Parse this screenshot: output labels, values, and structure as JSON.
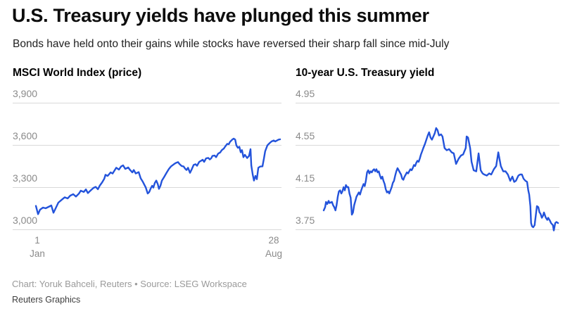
{
  "page": {
    "title": "U.S. Treasury yields have plunged this summer",
    "subtitle": "Bonds have held onto their gains while stocks have reversed their sharp fall since mid-July",
    "footer_credit": "Chart: Yoruk Bahceli, Reuters • Source: LSEG Workspace",
    "footer_brand": "Reuters Graphics"
  },
  "chart_data": [
    {
      "type": "line",
      "title": "MSCI World Index (price)",
      "x_range": [
        "1 Jan",
        "28 Aug"
      ],
      "x_unit": "fraction of x-axis from 1 Jan (0) to 28 Aug (1)",
      "ylim": [
        3000,
        3900
      ],
      "yticks": [
        3000,
        3300,
        3600,
        3900
      ],
      "ytick_labels": [
        "3,000",
        "3,300",
        "3,600",
        "3,900"
      ],
      "xtick_labels": [
        [
          "1",
          "Jan"
        ],
        [
          "28",
          "Aug"
        ]
      ],
      "grid": true,
      "legend": "none",
      "line_color": "#2353db",
      "points": [
        [
          0,
          3167
        ],
        [
          0.009,
          3108
        ],
        [
          0.017,
          3140
        ],
        [
          0.029,
          3155
        ],
        [
          0.04,
          3150
        ],
        [
          0.052,
          3160
        ],
        [
          0.063,
          3170
        ],
        [
          0.072,
          3118
        ],
        [
          0.081,
          3150
        ],
        [
          0.092,
          3190
        ],
        [
          0.107,
          3212
        ],
        [
          0.118,
          3228
        ],
        [
          0.13,
          3220
        ],
        [
          0.141,
          3240
        ],
        [
          0.153,
          3250
        ],
        [
          0.164,
          3233
        ],
        [
          0.176,
          3254
        ],
        [
          0.184,
          3275
        ],
        [
          0.196,
          3266
        ],
        [
          0.205,
          3284
        ],
        [
          0.213,
          3258
        ],
        [
          0.225,
          3278
        ],
        [
          0.236,
          3295
        ],
        [
          0.245,
          3302
        ],
        [
          0.254,
          3285
        ],
        [
          0.262,
          3312
        ],
        [
          0.271,
          3333
        ],
        [
          0.28,
          3360
        ],
        [
          0.285,
          3388
        ],
        [
          0.294,
          3380
        ],
        [
          0.306,
          3405
        ],
        [
          0.314,
          3397
        ],
        [
          0.329,
          3438
        ],
        [
          0.34,
          3425
        ],
        [
          0.349,
          3447
        ],
        [
          0.357,
          3455
        ],
        [
          0.366,
          3430
        ],
        [
          0.378,
          3440
        ],
        [
          0.386,
          3422
        ],
        [
          0.395,
          3405
        ],
        [
          0.401,
          3422
        ],
        [
          0.409,
          3397
        ],
        [
          0.421,
          3407
        ],
        [
          0.429,
          3363
        ],
        [
          0.438,
          3338
        ],
        [
          0.45,
          3297
        ],
        [
          0.458,
          3255
        ],
        [
          0.464,
          3265
        ],
        [
          0.47,
          3290
        ],
        [
          0.476,
          3310
        ],
        [
          0.481,
          3297
        ],
        [
          0.487,
          3330
        ],
        [
          0.493,
          3347
        ],
        [
          0.499,
          3322
        ],
        [
          0.504,
          3288
        ],
        [
          0.51,
          3310
        ],
        [
          0.516,
          3347
        ],
        [
          0.525,
          3372
        ],
        [
          0.536,
          3405
        ],
        [
          0.545,
          3430
        ],
        [
          0.553,
          3447
        ],
        [
          0.565,
          3463
        ],
        [
          0.573,
          3472
        ],
        [
          0.582,
          3478
        ],
        [
          0.588,
          3465
        ],
        [
          0.597,
          3450
        ],
        [
          0.605,
          3447
        ],
        [
          0.611,
          3432
        ],
        [
          0.617,
          3422
        ],
        [
          0.623,
          3438
        ],
        [
          0.631,
          3402
        ],
        [
          0.637,
          3422
        ],
        [
          0.646,
          3458
        ],
        [
          0.654,
          3463
        ],
        [
          0.66,
          3452
        ],
        [
          0.669,
          3480
        ],
        [
          0.677,
          3488
        ],
        [
          0.683,
          3495
        ],
        [
          0.689,
          3480
        ],
        [
          0.697,
          3505
        ],
        [
          0.706,
          3508
        ],
        [
          0.712,
          3497
        ],
        [
          0.718,
          3505
        ],
        [
          0.723,
          3522
        ],
        [
          0.732,
          3525
        ],
        [
          0.738,
          3513
        ],
        [
          0.746,
          3538
        ],
        [
          0.755,
          3547
        ],
        [
          0.761,
          3563
        ],
        [
          0.77,
          3575
        ],
        [
          0.775,
          3588
        ],
        [
          0.784,
          3608
        ],
        [
          0.79,
          3605
        ],
        [
          0.795,
          3622
        ],
        [
          0.804,
          3638
        ],
        [
          0.81,
          3645
        ],
        [
          0.816,
          3638
        ],
        [
          0.821,
          3597
        ],
        [
          0.827,
          3580
        ],
        [
          0.833,
          3587
        ],
        [
          0.839,
          3548
        ],
        [
          0.844,
          3563
        ],
        [
          0.85,
          3513
        ],
        [
          0.856,
          3530
        ],
        [
          0.865,
          3507
        ],
        [
          0.873,
          3522
        ],
        [
          0.879,
          3570
        ],
        [
          0.882,
          3455
        ],
        [
          0.888,
          3390
        ],
        [
          0.893,
          3347
        ],
        [
          0.899,
          3380
        ],
        [
          0.905,
          3357
        ],
        [
          0.911,
          3438
        ],
        [
          0.919,
          3447
        ],
        [
          0.928,
          3448
        ],
        [
          0.934,
          3505
        ],
        [
          0.939,
          3555
        ],
        [
          0.948,
          3597
        ],
        [
          0.957,
          3613
        ],
        [
          0.965,
          3625
        ],
        [
          0.974,
          3632
        ],
        [
          0.98,
          3625
        ],
        [
          0.988,
          3632
        ],
        [
          0.994,
          3638
        ],
        [
          1,
          3640
        ]
      ]
    },
    {
      "type": "line",
      "title": "10-year U.S. Treasury yield",
      "x_range": [
        "1 Jan",
        "28 Aug"
      ],
      "x_unit": "fraction of x-axis from 1 Jan (0) to 28 Aug (1)",
      "ylim": [
        3.75,
        4.95
      ],
      "yticks": [
        3.75,
        4.15,
        4.55,
        4.95
      ],
      "ytick_labels": [
        "3.75",
        "4.15",
        "4.55",
        "4.95"
      ],
      "xtick_labels": [],
      "grid": true,
      "legend": "none",
      "line_color": "#2353db",
      "points": [
        [
          0,
          3.93
        ],
        [
          0.006,
          3.96
        ],
        [
          0.01,
          4.01
        ],
        [
          0.015,
          3.99
        ],
        [
          0.021,
          4.02
        ],
        [
          0.025,
          4.0
        ],
        [
          0.035,
          4.01
        ],
        [
          0.04,
          3.98
        ],
        [
          0.045,
          3.96
        ],
        [
          0.05,
          3.93
        ],
        [
          0.055,
          3.98
        ],
        [
          0.06,
          4.06
        ],
        [
          0.065,
          4.11
        ],
        [
          0.07,
          4.12
        ],
        [
          0.075,
          4.09
        ],
        [
          0.08,
          4.11
        ],
        [
          0.085,
          4.15
        ],
        [
          0.09,
          4.12
        ],
        [
          0.095,
          4.17
        ],
        [
          0.1,
          4.15
        ],
        [
          0.105,
          4.15
        ],
        [
          0.11,
          4.09
        ],
        [
          0.115,
          4.05
        ],
        [
          0.12,
          3.89
        ],
        [
          0.125,
          3.91
        ],
        [
          0.13,
          3.98
        ],
        [
          0.135,
          4.02
        ],
        [
          0.14,
          4.06
        ],
        [
          0.145,
          4.08
        ],
        [
          0.15,
          4.1
        ],
        [
          0.155,
          4.08
        ],
        [
          0.16,
          4.12
        ],
        [
          0.165,
          4.15
        ],
        [
          0.17,
          4.18
        ],
        [
          0.175,
          4.16
        ],
        [
          0.18,
          4.21
        ],
        [
          0.185,
          4.29
        ],
        [
          0.19,
          4.31
        ],
        [
          0.195,
          4.28
        ],
        [
          0.2,
          4.3
        ],
        [
          0.205,
          4.29
        ],
        [
          0.21,
          4.31
        ],
        [
          0.215,
          4.32
        ],
        [
          0.22,
          4.3
        ],
        [
          0.225,
          4.32
        ],
        [
          0.23,
          4.29
        ],
        [
          0.235,
          4.3
        ],
        [
          0.24,
          4.26
        ],
        [
          0.245,
          4.23
        ],
        [
          0.25,
          4.25
        ],
        [
          0.255,
          4.21
        ],
        [
          0.26,
          4.18
        ],
        [
          0.265,
          4.13
        ],
        [
          0.27,
          4.1
        ],
        [
          0.275,
          4.11
        ],
        [
          0.28,
          4.09
        ],
        [
          0.285,
          4.12
        ],
        [
          0.29,
          4.15
        ],
        [
          0.295,
          4.19
        ],
        [
          0.3,
          4.21
        ],
        [
          0.305,
          4.26
        ],
        [
          0.31,
          4.3
        ],
        [
          0.315,
          4.33
        ],
        [
          0.32,
          4.31
        ],
        [
          0.325,
          4.29
        ],
        [
          0.33,
          4.27
        ],
        [
          0.335,
          4.23
        ],
        [
          0.34,
          4.22
        ],
        [
          0.345,
          4.25
        ],
        [
          0.35,
          4.27
        ],
        [
          0.355,
          4.29
        ],
        [
          0.36,
          4.28
        ],
        [
          0.365,
          4.3
        ],
        [
          0.37,
          4.32
        ],
        [
          0.375,
          4.31
        ],
        [
          0.38,
          4.33
        ],
        [
          0.385,
          4.36
        ],
        [
          0.39,
          4.35
        ],
        [
          0.395,
          4.38
        ],
        [
          0.4,
          4.4
        ],
        [
          0.405,
          4.39
        ],
        [
          0.41,
          4.42
        ],
        [
          0.415,
          4.46
        ],
        [
          0.42,
          4.49
        ],
        [
          0.425,
          4.52
        ],
        [
          0.432,
          4.56
        ],
        [
          0.438,
          4.6
        ],
        [
          0.444,
          4.64
        ],
        [
          0.45,
          4.67
        ],
        [
          0.456,
          4.62
        ],
        [
          0.462,
          4.6
        ],
        [
          0.468,
          4.63
        ],
        [
          0.474,
          4.66
        ],
        [
          0.48,
          4.71
        ],
        [
          0.486,
          4.69
        ],
        [
          0.492,
          4.64
        ],
        [
          0.501,
          4.65
        ],
        [
          0.507,
          4.63
        ],
        [
          0.516,
          4.52
        ],
        [
          0.525,
          4.5
        ],
        [
          0.535,
          4.51
        ],
        [
          0.546,
          4.48
        ],
        [
          0.555,
          4.47
        ],
        [
          0.565,
          4.37
        ],
        [
          0.576,
          4.42
        ],
        [
          0.586,
          4.45
        ],
        [
          0.595,
          4.46
        ],
        [
          0.606,
          4.52
        ],
        [
          0.61,
          4.63
        ],
        [
          0.616,
          4.62
        ],
        [
          0.625,
          4.52
        ],
        [
          0.631,
          4.39
        ],
        [
          0.64,
          4.31
        ],
        [
          0.651,
          4.3
        ],
        [
          0.661,
          4.47
        ],
        [
          0.67,
          4.31
        ],
        [
          0.678,
          4.28
        ],
        [
          0.685,
          4.27
        ],
        [
          0.696,
          4.26
        ],
        [
          0.706,
          4.28
        ],
        [
          0.715,
          4.27
        ],
        [
          0.726,
          4.32
        ],
        [
          0.736,
          4.35
        ],
        [
          0.745,
          4.48
        ],
        [
          0.756,
          4.35
        ],
        [
          0.766,
          4.3
        ],
        [
          0.776,
          4.3
        ],
        [
          0.786,
          4.27
        ],
        [
          0.796,
          4.21
        ],
        [
          0.805,
          4.25
        ],
        [
          0.813,
          4.2
        ],
        [
          0.82,
          4.21
        ],
        [
          0.831,
          4.26
        ],
        [
          0.838,
          4.27
        ],
        [
          0.846,
          4.27
        ],
        [
          0.853,
          4.23
        ],
        [
          0.861,
          4.21
        ],
        [
          0.868,
          4.2
        ],
        [
          0.873,
          4.12
        ],
        [
          0.877,
          4.08
        ],
        [
          0.882,
          3.97
        ],
        [
          0.885,
          3.81
        ],
        [
          0.889,
          3.78
        ],
        [
          0.894,
          3.77
        ],
        [
          0.9,
          3.79
        ],
        [
          0.91,
          3.97
        ],
        [
          0.916,
          3.96
        ],
        [
          0.921,
          3.91
        ],
        [
          0.925,
          3.9
        ],
        [
          0.931,
          3.86
        ],
        [
          0.936,
          3.88
        ],
        [
          0.94,
          3.91
        ],
        [
          0.948,
          3.86
        ],
        [
          0.954,
          3.84
        ],
        [
          0.958,
          3.86
        ],
        [
          0.966,
          3.83
        ],
        [
          0.97,
          3.81
        ],
        [
          0.978,
          3.79
        ],
        [
          0.982,
          3.74
        ],
        [
          0.988,
          3.81
        ],
        [
          0.993,
          3.82
        ],
        [
          1,
          3.81
        ]
      ]
    }
  ]
}
